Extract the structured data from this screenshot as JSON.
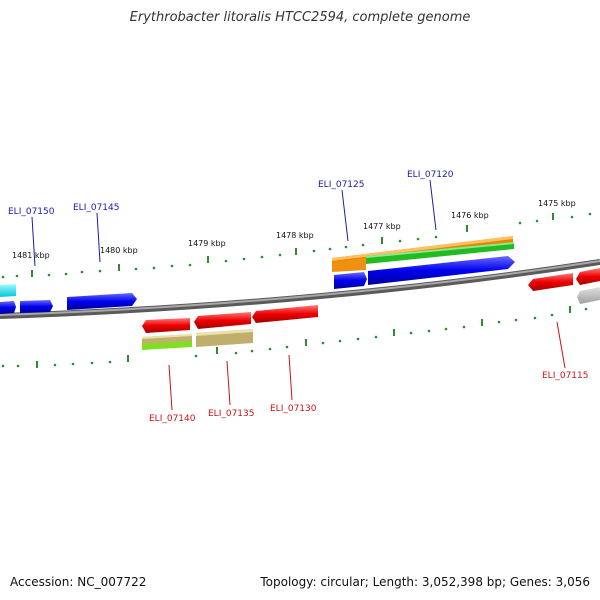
{
  "title": "Erythrobacter litoralis HTCC2594, complete genome",
  "footer": {
    "accession": "Accession: NC_007722",
    "summary": "Topology: circular; Length: 3,052,398 bp; Genes: 3,056"
  },
  "colors": {
    "forward_label": "#1a1aa8",
    "reverse_label": "#c81414",
    "tick": "#2e8b2e",
    "backbone": "#808080"
  },
  "kbp_labels": [
    "1481 kbp",
    "1480 kbp",
    "1479 kbp",
    "1478 kbp",
    "1477 kbp",
    "1476 kbp",
    "1475 kbp"
  ],
  "gene_labels": {
    "forward": [
      "ELI_07150",
      "ELI_07145",
      "ELI_07125",
      "ELI_07120"
    ],
    "reverse": [
      "ELI_07140",
      "ELI_07135",
      "ELI_07130",
      "ELI_07115"
    ]
  }
}
